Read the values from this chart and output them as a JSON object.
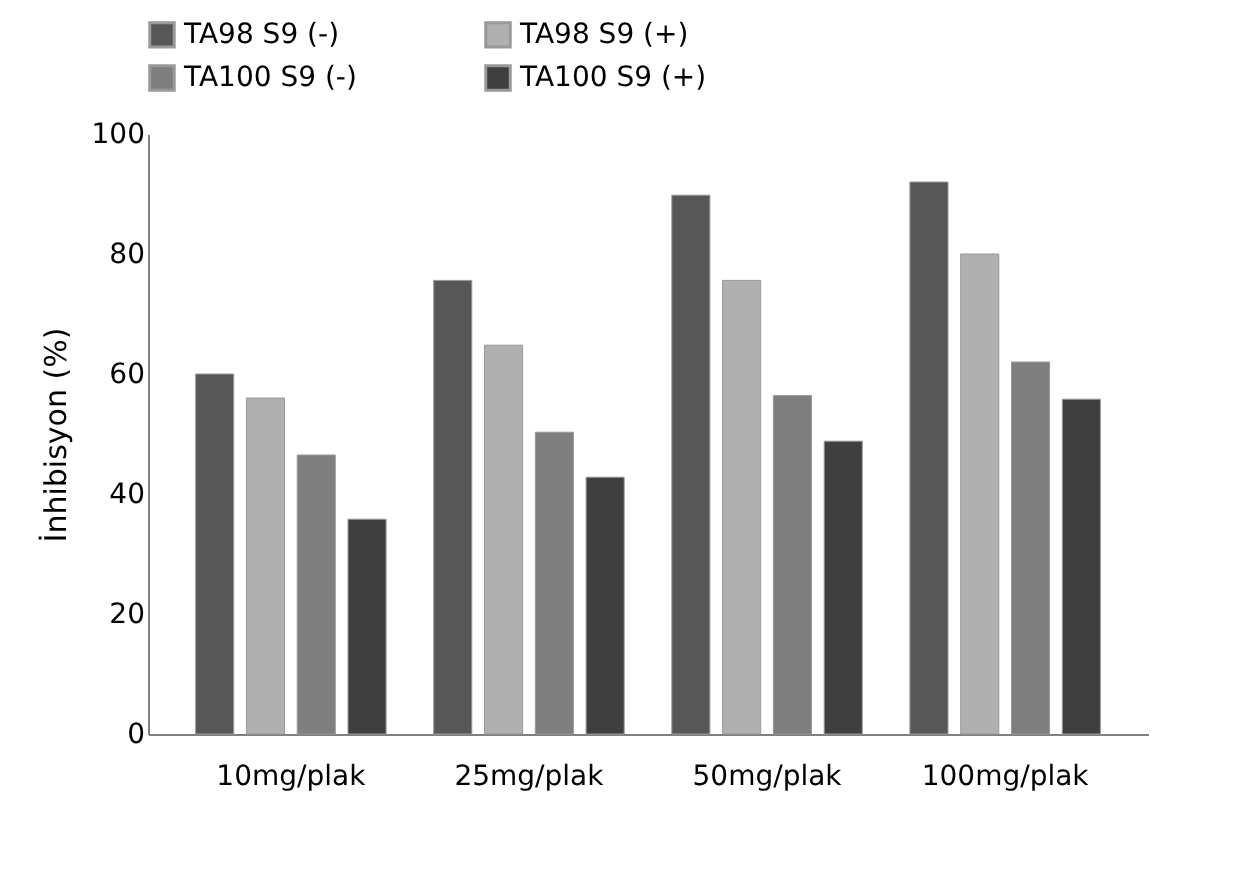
{
  "chart_data": {
    "type": "bar",
    "ylabel": "İnhibisyon (%)",
    "categories": [
      "10mg/plak",
      "25mg/plak",
      "50mg/plak",
      "100mg/plak"
    ],
    "series": [
      {
        "name": "TA98 S9 (-)",
        "color": "#575757",
        "values": [
          60,
          75.6,
          89.8,
          92
        ]
      },
      {
        "name": "TA98 S9 (+)",
        "color": "#b0b0b0",
        "values": [
          56,
          64.8,
          75.6,
          80
        ]
      },
      {
        "name": "TA100 S9 (-)",
        "color": "#7f7f7f",
        "values": [
          46.5,
          50.3,
          56.4,
          62
        ]
      },
      {
        "name": "TA100 S9 (+)",
        "color": "#3f3f3f",
        "values": [
          35.8,
          42.8,
          48.8,
          55.8
        ]
      }
    ],
    "ylim": [
      0,
      100
    ],
    "yticks": [
      0,
      20,
      40,
      60,
      80,
      100
    ],
    "grid": false,
    "legend": "top"
  }
}
